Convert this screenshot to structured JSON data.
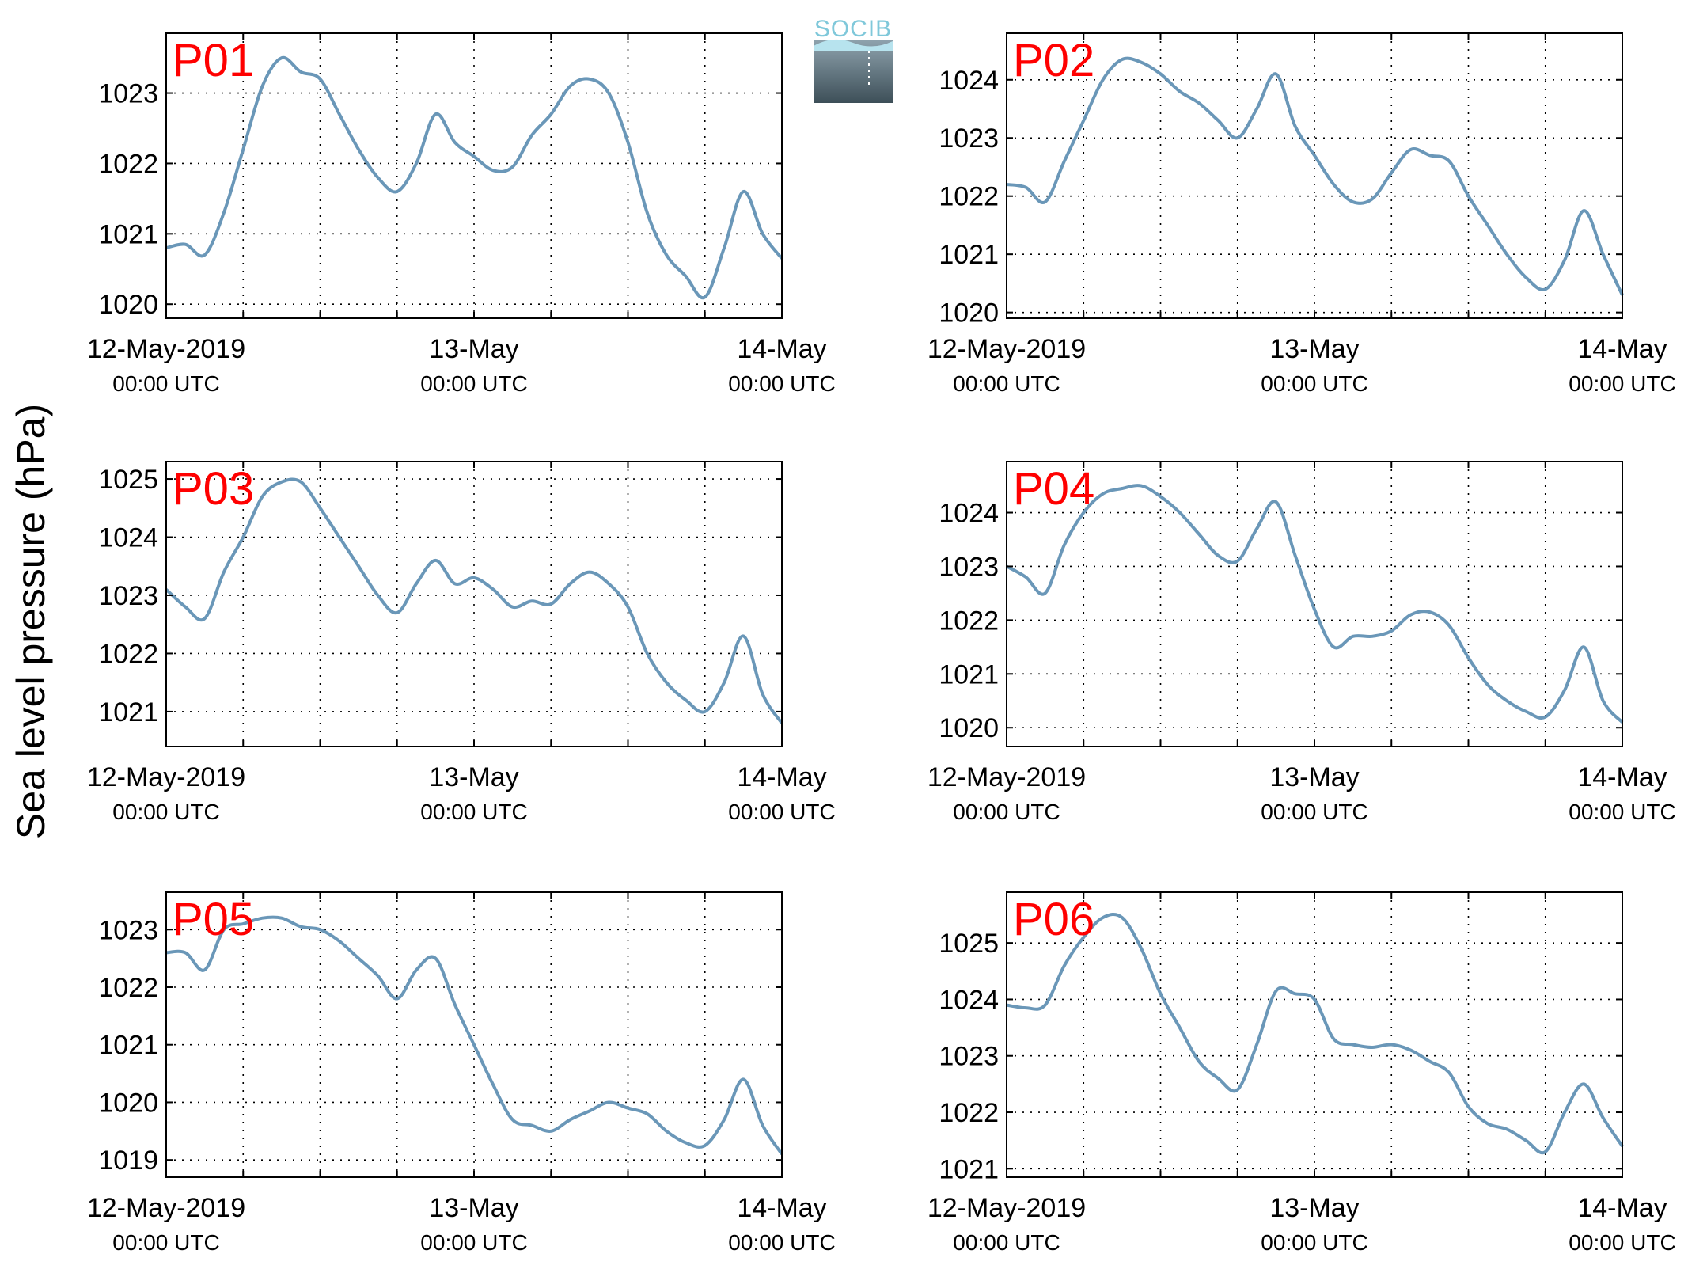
{
  "ylabel": "Sea level pressure (hPa)",
  "logo": {
    "text": "SOCIB"
  },
  "colors": {
    "line": "#6a97b8",
    "title": "#ff0000",
    "logo_text": "#7fc8da",
    "logo_top": "#8fa3ae",
    "logo_bottom": "#3d4f58"
  },
  "chart_data": [
    {
      "type": "line",
      "title": "P01",
      "x_unit": "hours since 12-May-2019 00:00 UTC",
      "xlim": [
        0,
        48
      ],
      "xticks": [
        {
          "label": "12-May-2019",
          "sub": "00:00 UTC"
        },
        {
          "label": "13-May",
          "sub": "00:00 UTC"
        },
        {
          "label": "14-May",
          "sub": "00:00 UTC"
        }
      ],
      "ylim": [
        1019.8,
        1023.85
      ],
      "yticks": [
        1020,
        1021,
        1022,
        1023
      ],
      "grid": true,
      "x": [
        0,
        1.5,
        3,
        4.5,
        6,
        7.5,
        9,
        10.5,
        12,
        13.5,
        15,
        16.5,
        18,
        19.5,
        21,
        22.5,
        24,
        25.5,
        27,
        28.5,
        30,
        31.5,
        33,
        34.5,
        36,
        37.5,
        39,
        40.5,
        42,
        43.5,
        45,
        46.5,
        48
      ],
      "y": [
        1020.8,
        1020.85,
        1020.7,
        1021.3,
        1022.2,
        1023.1,
        1023.5,
        1023.3,
        1023.2,
        1022.7,
        1022.2,
        1021.8,
        1021.6,
        1022.0,
        1022.7,
        1022.3,
        1022.1,
        1021.9,
        1021.95,
        1022.4,
        1022.7,
        1023.1,
        1023.2,
        1023.0,
        1022.3,
        1021.3,
        1020.7,
        1020.4,
        1020.1,
        1020.8,
        1021.6,
        1021.0,
        1020.65
      ]
    },
    {
      "type": "line",
      "title": "P02",
      "x_unit": "hours since 12-May-2019 00:00 UTC",
      "xlim": [
        0,
        48
      ],
      "xticks": [
        {
          "label": "12-May-2019",
          "sub": "00:00 UTC"
        },
        {
          "label": "13-May",
          "sub": "00:00 UTC"
        },
        {
          "label": "14-May",
          "sub": "00:00 UTC"
        }
      ],
      "ylim": [
        1019.9,
        1024.8
      ],
      "yticks": [
        1020,
        1021,
        1022,
        1023,
        1024
      ],
      "grid": true,
      "x": [
        0,
        1.5,
        3,
        4.5,
        6,
        7.5,
        9,
        10.5,
        12,
        13.5,
        15,
        16.5,
        18,
        19.5,
        21,
        22.5,
        24,
        25.5,
        27,
        28.5,
        30,
        31.5,
        33,
        34.5,
        36,
        37.5,
        39,
        40.5,
        42,
        43.5,
        45,
        46.5,
        48
      ],
      "y": [
        1022.2,
        1022.15,
        1021.9,
        1022.6,
        1023.3,
        1024.0,
        1024.35,
        1024.3,
        1024.1,
        1023.8,
        1023.6,
        1023.3,
        1023.0,
        1023.5,
        1024.1,
        1023.2,
        1022.7,
        1022.2,
        1021.9,
        1021.95,
        1022.4,
        1022.8,
        1022.7,
        1022.6,
        1022.0,
        1021.5,
        1021.0,
        1020.6,
        1020.4,
        1020.9,
        1021.75,
        1021.0,
        1020.3
      ]
    },
    {
      "type": "line",
      "title": "P03",
      "x_unit": "hours since 12-May-2019 00:00 UTC",
      "xlim": [
        0,
        48
      ],
      "xticks": [
        {
          "label": "12-May-2019",
          "sub": "00:00 UTC"
        },
        {
          "label": "13-May",
          "sub": "00:00 UTC"
        },
        {
          "label": "14-May",
          "sub": "00:00 UTC"
        }
      ],
      "ylim": [
        1020.4,
        1025.3
      ],
      "yticks": [
        1021,
        1022,
        1023,
        1024,
        1025
      ],
      "grid": true,
      "x": [
        0,
        1.5,
        3,
        4.5,
        6,
        7.5,
        9,
        10.5,
        12,
        13.5,
        15,
        16.5,
        18,
        19.5,
        21,
        22.5,
        24,
        25.5,
        27,
        28.5,
        30,
        31.5,
        33,
        34.5,
        36,
        37.5,
        39,
        40.5,
        42,
        43.5,
        45,
        46.5,
        48
      ],
      "y": [
        1023.1,
        1022.8,
        1022.6,
        1023.4,
        1024.0,
        1024.7,
        1024.95,
        1024.95,
        1024.5,
        1024.0,
        1023.5,
        1023.0,
        1022.7,
        1023.2,
        1023.6,
        1023.2,
        1023.3,
        1023.1,
        1022.8,
        1022.9,
        1022.85,
        1023.2,
        1023.4,
        1023.2,
        1022.8,
        1022.0,
        1021.5,
        1021.2,
        1021.0,
        1021.5,
        1022.3,
        1021.3,
        1020.8
      ]
    },
    {
      "type": "line",
      "title": "P04",
      "x_unit": "hours since 12-May-2019 00:00 UTC",
      "xlim": [
        0,
        48
      ],
      "xticks": [
        {
          "label": "12-May-2019",
          "sub": "00:00 UTC"
        },
        {
          "label": "13-May",
          "sub": "00:00 UTC"
        },
        {
          "label": "14-May",
          "sub": "00:00 UTC"
        }
      ],
      "ylim": [
        1019.65,
        1024.95
      ],
      "yticks": [
        1020,
        1021,
        1022,
        1023,
        1024
      ],
      "grid": true,
      "x": [
        0,
        1.5,
        3,
        4.5,
        6,
        7.5,
        9,
        10.5,
        12,
        13.5,
        15,
        16.5,
        18,
        19.5,
        21,
        22.5,
        24,
        25.5,
        27,
        28.5,
        30,
        31.5,
        33,
        34.5,
        36,
        37.5,
        39,
        40.5,
        42,
        43.5,
        45,
        46.5,
        48
      ],
      "y": [
        1023.0,
        1022.8,
        1022.5,
        1023.4,
        1024.0,
        1024.35,
        1024.45,
        1024.5,
        1024.3,
        1024.0,
        1023.6,
        1023.2,
        1023.1,
        1023.7,
        1024.2,
        1023.2,
        1022.2,
        1021.5,
        1021.7,
        1021.7,
        1021.8,
        1022.1,
        1022.15,
        1021.9,
        1021.3,
        1020.8,
        1020.5,
        1020.3,
        1020.2,
        1020.7,
        1021.5,
        1020.5,
        1020.1
      ]
    },
    {
      "type": "line",
      "title": "P05",
      "x_unit": "hours since 12-May-2019 00:00 UTC",
      "xlim": [
        0,
        48
      ],
      "xticks": [
        {
          "label": "12-May-2019",
          "sub": "00:00 UTC"
        },
        {
          "label": "13-May",
          "sub": "00:00 UTC"
        },
        {
          "label": "14-May",
          "sub": "00:00 UTC"
        }
      ],
      "ylim": [
        1018.7,
        1023.65
      ],
      "yticks": [
        1019,
        1020,
        1021,
        1022,
        1023
      ],
      "grid": true,
      "x": [
        0,
        1.5,
        3,
        4.5,
        6,
        7.5,
        9,
        10.5,
        12,
        13.5,
        15,
        16.5,
        18,
        19.5,
        21,
        22.5,
        24,
        25.5,
        27,
        28.5,
        30,
        31.5,
        33,
        34.5,
        36,
        37.5,
        39,
        40.5,
        42,
        43.5,
        45,
        46.5,
        48
      ],
      "y": [
        1022.6,
        1022.6,
        1022.3,
        1023.0,
        1023.1,
        1023.2,
        1023.2,
        1023.05,
        1023.0,
        1022.8,
        1022.5,
        1022.2,
        1021.8,
        1022.3,
        1022.5,
        1021.7,
        1021.0,
        1020.3,
        1019.7,
        1019.6,
        1019.5,
        1019.7,
        1019.85,
        1020.0,
        1019.9,
        1019.8,
        1019.5,
        1019.3,
        1019.25,
        1019.7,
        1020.4,
        1019.6,
        1019.1
      ]
    },
    {
      "type": "line",
      "title": "P06",
      "x_unit": "hours since 12-May-2019 00:00 UTC",
      "xlim": [
        0,
        48
      ],
      "xticks": [
        {
          "label": "12-May-2019",
          "sub": "00:00 UTC"
        },
        {
          "label": "13-May",
          "sub": "00:00 UTC"
        },
        {
          "label": "14-May",
          "sub": "00:00 UTC"
        }
      ],
      "ylim": [
        1020.85,
        1025.9
      ],
      "yticks": [
        1021,
        1022,
        1023,
        1024,
        1025
      ],
      "grid": true,
      "x": [
        0,
        1.5,
        3,
        4.5,
        6,
        7.5,
        9,
        10.5,
        12,
        13.5,
        15,
        16.5,
        18,
        19.5,
        21,
        22.5,
        24,
        25.5,
        27,
        28.5,
        30,
        31.5,
        33,
        34.5,
        36,
        37.5,
        39,
        40.5,
        42,
        43.5,
        45,
        46.5,
        48
      ],
      "y": [
        1023.9,
        1023.85,
        1023.9,
        1024.6,
        1025.1,
        1025.45,
        1025.45,
        1024.9,
        1024.1,
        1023.5,
        1022.9,
        1022.6,
        1022.4,
        1023.2,
        1024.15,
        1024.1,
        1024.0,
        1023.3,
        1023.2,
        1023.15,
        1023.2,
        1023.1,
        1022.9,
        1022.7,
        1022.1,
        1021.8,
        1021.7,
        1021.5,
        1021.3,
        1022.0,
        1022.5,
        1021.9,
        1021.4
      ]
    }
  ]
}
